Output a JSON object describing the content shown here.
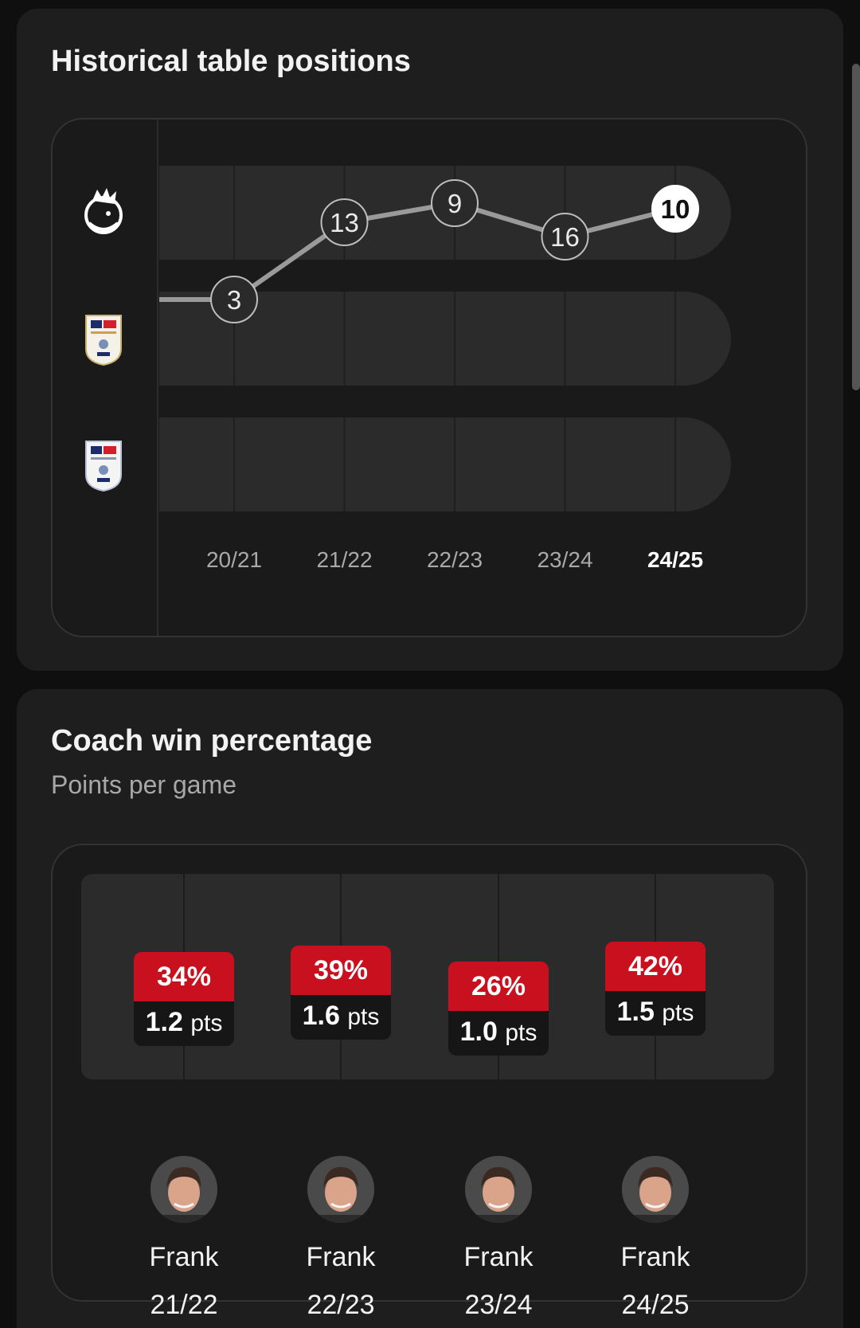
{
  "history": {
    "title": "Historical table positions",
    "leagues": [
      {
        "name": "Premier League",
        "icon": "premier-league-lion-icon"
      },
      {
        "name": "Sky Bet Championship",
        "icon": "efl-championship-badge-icon"
      },
      {
        "name": "Sky Bet League One",
        "icon": "efl-league-one-badge-icon"
      }
    ],
    "chart_data": {
      "type": "line",
      "x": [
        "20/21",
        "21/22",
        "22/23",
        "23/24",
        "24/25"
      ],
      "series": [
        {
          "values": [
            3,
            13,
            9,
            16,
            10
          ],
          "league": [
            "Championship",
            "Premier League",
            "Premier League",
            "Premier League",
            "Premier League"
          ]
        }
      ],
      "highlight": "24/25"
    }
  },
  "coach": {
    "title": "Coach win percentage",
    "subtitle": "Points per game",
    "pts_unit": "pts",
    "seasons": [
      {
        "pct": "34%",
        "pts": "1.2",
        "name": "Frank",
        "season": "21/22",
        "win_rate": 34
      },
      {
        "pct": "39%",
        "pts": "1.6",
        "name": "Frank",
        "season": "22/23",
        "win_rate": 39
      },
      {
        "pct": "26%",
        "pts": "1.0",
        "name": "Frank",
        "season": "23/24",
        "win_rate": 26
      },
      {
        "pct": "42%",
        "pts": "1.5",
        "name": "Frank",
        "season": "24/25",
        "win_rate": 42
      }
    ],
    "colors": {
      "accent": "#c8101e"
    }
  }
}
